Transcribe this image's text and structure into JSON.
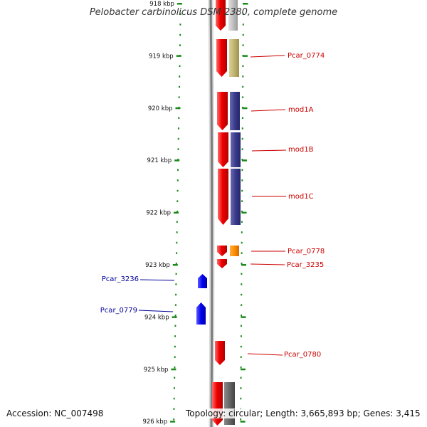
{
  "title": "Pelobacter carbinolicus DSM 2380, complete genome",
  "footer": {
    "accession": "Accession: NC_007498",
    "summary": "Topology: circular; Length: 3,665,893 bp; Genes: 3,415"
  },
  "colors": {
    "forward_cds": "#ee0000",
    "reverse_cds": "#0000ee",
    "tick": "#1a8a1a",
    "backbone": "#888888",
    "label_forward": "#cc0000",
    "label_reverse": "#000099"
  },
  "ticks": [
    {
      "label": "918 kbp"
    },
    {
      "label": "919 kbp"
    },
    {
      "label": "920 kbp"
    },
    {
      "label": "921 kbp"
    },
    {
      "label": "922 kbp"
    },
    {
      "label": "923 kbp"
    },
    {
      "label": "924 kbp"
    },
    {
      "label": "925 kbp"
    },
    {
      "label": "926 kbp"
    }
  ],
  "genes": [
    {
      "name": "Pcar_0774",
      "strand": "+"
    },
    {
      "name": "mod1A",
      "strand": "+"
    },
    {
      "name": "mod1B",
      "strand": "+"
    },
    {
      "name": "mod1C",
      "strand": "+"
    },
    {
      "name": "Pcar_0778",
      "strand": "+"
    },
    {
      "name": "Pcar_3235",
      "strand": "+"
    },
    {
      "name": "Pcar_3236",
      "strand": "-"
    },
    {
      "name": "Pcar_0779",
      "strand": "-"
    },
    {
      "name": "Pcar_0780",
      "strand": "+"
    }
  ]
}
